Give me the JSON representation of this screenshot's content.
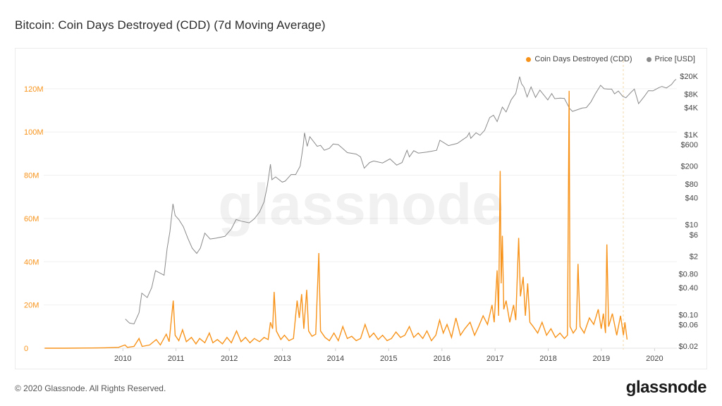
{
  "title": "Bitcoin: Coin Days Destroyed (CDD) (7d Moving Average)",
  "footer": {
    "copyright": "© 2020 Glassnode. All Rights Reserved.",
    "brand": "glassnode"
  },
  "watermark": "glassnode",
  "legend": [
    {
      "label": "Coin Days Destroyed (CDD)",
      "color": "#f7931a"
    },
    {
      "label": "Price [USD]",
      "color": "#8a8a8a"
    }
  ],
  "chart_data": {
    "type": "line",
    "x_ticks": [
      "2010",
      "2011",
      "2012",
      "2013",
      "2014",
      "2015",
      "2016",
      "2017",
      "2018",
      "2019",
      "2020"
    ],
    "left_axis": {
      "ticks": [
        "0",
        "20M",
        "40M",
        "60M",
        "80M",
        "100M",
        "120M"
      ],
      "ylim": [
        0,
        133000000
      ]
    },
    "right_axis": {
      "scale": "log",
      "ticks": [
        "$20K",
        "$8K",
        "$4K",
        "$1K",
        "$600",
        "$200",
        "$80",
        "$40",
        "$10",
        "$6",
        "$2",
        "$0.80",
        "$0.40",
        "$0.10",
        "$0.06",
        "$0.02"
      ]
    },
    "grid": true,
    "legend_position": "top-right",
    "series": [
      {
        "name": "Coin Days Destroyed (CDD)",
        "color": "#f7931a",
        "points": [
          [
            "2009-01-10",
            0
          ],
          [
            "2009-06-01",
            0
          ],
          [
            "2009-12-01",
            100000
          ],
          [
            "2010-03-01",
            200000
          ],
          [
            "2010-06-01",
            400000
          ],
          [
            "2010-07-15",
            1500000
          ],
          [
            "2010-08-01",
            400000
          ],
          [
            "2010-09-15",
            800000
          ],
          [
            "2010-10-20",
            4500000
          ],
          [
            "2010-11-10",
            800000
          ],
          [
            "2011-01-01",
            1500000
          ],
          [
            "2011-02-15",
            4000000
          ],
          [
            "2011-03-15",
            1500000
          ],
          [
            "2011-04-25",
            6500000
          ],
          [
            "2011-05-15",
            3000000
          ],
          [
            "2011-06-12",
            22000000
          ],
          [
            "2011-06-25",
            6000000
          ],
          [
            "2011-07-20",
            3500000
          ],
          [
            "2011-08-15",
            8500000
          ],
          [
            "2011-09-10",
            3000000
          ],
          [
            "2011-10-15",
            5000000
          ],
          [
            "2011-11-15",
            2000000
          ],
          [
            "2011-12-10",
            4500000
          ],
          [
            "2012-01-15",
            2500000
          ],
          [
            "2012-02-15",
            7000000
          ],
          [
            "2012-03-10",
            2500000
          ],
          [
            "2012-04-10",
            4000000
          ],
          [
            "2012-05-15",
            2000000
          ],
          [
            "2012-06-15",
            5000000
          ],
          [
            "2012-07-15",
            2500000
          ],
          [
            "2012-08-20",
            8000000
          ],
          [
            "2012-09-20",
            3000000
          ],
          [
            "2012-10-20",
            5000000
          ],
          [
            "2012-11-20",
            2500000
          ],
          [
            "2012-12-20",
            4500000
          ],
          [
            "2013-01-25",
            3000000
          ],
          [
            "2013-02-25",
            5000000
          ],
          [
            "2013-03-25",
            4000000
          ],
          [
            "2013-04-10",
            12000000
          ],
          [
            "2013-04-25",
            9000000
          ],
          [
            "2013-05-05",
            26000000
          ],
          [
            "2013-05-20",
            8000000
          ],
          [
            "2013-06-20",
            4000000
          ],
          [
            "2013-07-15",
            6000000
          ],
          [
            "2013-08-15",
            3500000
          ],
          [
            "2013-09-15",
            4500000
          ],
          [
            "2013-10-10",
            22000000
          ],
          [
            "2013-10-25",
            14000000
          ],
          [
            "2013-11-10",
            25000000
          ],
          [
            "2013-11-25",
            9000000
          ],
          [
            "2013-12-15",
            27000000
          ],
          [
            "2013-12-28",
            8000000
          ],
          [
            "2014-01-20",
            5500000
          ],
          [
            "2014-02-15",
            6500000
          ],
          [
            "2014-03-08",
            44000000
          ],
          [
            "2014-03-20",
            8000000
          ],
          [
            "2014-04-20",
            5000000
          ],
          [
            "2014-05-20",
            3500000
          ],
          [
            "2014-06-20",
            7000000
          ],
          [
            "2014-07-20",
            3500000
          ],
          [
            "2014-08-20",
            10000000
          ],
          [
            "2014-09-20",
            4500000
          ],
          [
            "2014-10-20",
            5500000
          ],
          [
            "2014-11-20",
            3500000
          ],
          [
            "2014-12-20",
            4500000
          ],
          [
            "2015-01-20",
            11000000
          ],
          [
            "2015-02-20",
            5000000
          ],
          [
            "2015-03-20",
            7000000
          ],
          [
            "2015-04-20",
            4000000
          ],
          [
            "2015-05-20",
            6000000
          ],
          [
            "2015-06-20",
            3500000
          ],
          [
            "2015-07-20",
            4500000
          ],
          [
            "2015-08-20",
            7500000
          ],
          [
            "2015-09-20",
            5000000
          ],
          [
            "2015-10-20",
            6000000
          ],
          [
            "2015-11-20",
            10000000
          ],
          [
            "2015-12-20",
            5000000
          ],
          [
            "2016-01-20",
            7000000
          ],
          [
            "2016-02-20",
            4500000
          ],
          [
            "2016-03-20",
            8000000
          ],
          [
            "2016-04-20",
            3500000
          ],
          [
            "2016-05-20",
            6000000
          ],
          [
            "2016-06-15",
            13000000
          ],
          [
            "2016-07-10",
            7000000
          ],
          [
            "2016-08-05",
            11000000
          ],
          [
            "2016-09-05",
            5000000
          ],
          [
            "2016-10-05",
            14000000
          ],
          [
            "2016-11-05",
            6000000
          ],
          [
            "2016-12-05",
            9000000
          ],
          [
            "2017-01-10",
            12000000
          ],
          [
            "2017-02-10",
            6000000
          ],
          [
            "2017-03-10",
            10000000
          ],
          [
            "2017-04-10",
            15000000
          ],
          [
            "2017-05-10",
            11000000
          ],
          [
            "2017-06-10",
            20000000
          ],
          [
            "2017-06-25",
            12000000
          ],
          [
            "2017-07-15",
            36000000
          ],
          [
            "2017-07-25",
            15000000
          ],
          [
            "2017-08-05",
            82000000
          ],
          [
            "2017-08-12",
            30000000
          ],
          [
            "2017-08-20",
            52000000
          ],
          [
            "2017-08-30",
            18000000
          ],
          [
            "2017-09-15",
            22000000
          ],
          [
            "2017-10-10",
            12000000
          ],
          [
            "2017-11-05",
            20000000
          ],
          [
            "2017-11-20",
            13000000
          ],
          [
            "2017-12-10",
            51000000
          ],
          [
            "2017-12-22",
            24000000
          ],
          [
            "2018-01-10",
            33000000
          ],
          [
            "2018-01-25",
            15000000
          ],
          [
            "2018-02-10",
            30000000
          ],
          [
            "2018-02-25",
            12000000
          ],
          [
            "2018-03-20",
            10000000
          ],
          [
            "2018-04-20",
            7000000
          ],
          [
            "2018-05-20",
            12000000
          ],
          [
            "2018-06-20",
            6000000
          ],
          [
            "2018-07-20",
            9000000
          ],
          [
            "2018-08-20",
            5000000
          ],
          [
            "2018-09-20",
            7000000
          ],
          [
            "2018-10-20",
            4500000
          ],
          [
            "2018-11-10",
            6000000
          ],
          [
            "2018-11-22",
            119000000
          ],
          [
            "2018-11-28",
            10000000
          ],
          [
            "2018-12-20",
            7000000
          ],
          [
            "2019-01-10",
            9000000
          ],
          [
            "2019-01-22",
            39000000
          ],
          [
            "2019-02-05",
            10000000
          ],
          [
            "2019-03-05",
            7000000
          ],
          [
            "2019-04-10",
            14000000
          ],
          [
            "2019-05-10",
            11000000
          ],
          [
            "2019-06-10",
            18000000
          ],
          [
            "2019-06-30",
            9000000
          ],
          [
            "2019-07-15",
            16000000
          ],
          [
            "2019-07-30",
            7000000
          ],
          [
            "2019-08-08",
            48000000
          ],
          [
            "2019-08-20",
            10000000
          ],
          [
            "2019-09-15",
            16000000
          ],
          [
            "2019-10-15",
            6000000
          ],
          [
            "2019-11-10",
            15000000
          ],
          [
            "2019-11-30",
            6000000
          ],
          [
            "2019-12-10",
            12000000
          ],
          [
            "2019-12-25",
            4000000
          ]
        ]
      },
      {
        "name": "Price [USD]",
        "color": "#8a8a8a",
        "points": [
          [
            "2010-07-18",
            0.08
          ],
          [
            "2010-08-15",
            0.065
          ],
          [
            "2010-09-15",
            0.062
          ],
          [
            "2010-10-20",
            0.11
          ],
          [
            "2010-11-08",
            0.3
          ],
          [
            "2010-12-15",
            0.24
          ],
          [
            "2011-01-15",
            0.4
          ],
          [
            "2011-02-10",
            0.95
          ],
          [
            "2011-03-10",
            0.85
          ],
          [
            "2011-04-10",
            0.75
          ],
          [
            "2011-05-01",
            3
          ],
          [
            "2011-05-20",
            7
          ],
          [
            "2011-06-10",
            29
          ],
          [
            "2011-06-25",
            16
          ],
          [
            "2011-07-20",
            13
          ],
          [
            "2011-08-20",
            9
          ],
          [
            "2011-09-20",
            5
          ],
          [
            "2011-10-20",
            3
          ],
          [
            "2011-11-20",
            2.3
          ],
          [
            "2011-12-15",
            3
          ],
          [
            "2012-01-15",
            6.5
          ],
          [
            "2012-02-20",
            4.8
          ],
          [
            "2012-04-01",
            5
          ],
          [
            "2012-06-01",
            5.5
          ],
          [
            "2012-07-15",
            8
          ],
          [
            "2012-08-17",
            13
          ],
          [
            "2012-09-20",
            12
          ],
          [
            "2012-11-15",
            11
          ],
          [
            "2012-12-20",
            13.5
          ],
          [
            "2013-01-25",
            19
          ],
          [
            "2013-02-25",
            32
          ],
          [
            "2013-03-20",
            75
          ],
          [
            "2013-04-10",
            220
          ],
          [
            "2013-04-20",
            100
          ],
          [
            "2013-05-15",
            115
          ],
          [
            "2013-06-30",
            88
          ],
          [
            "2013-07-20",
            93
          ],
          [
            "2013-08-30",
            130
          ],
          [
            "2013-09-30",
            130
          ],
          [
            "2013-10-31",
            200
          ],
          [
            "2013-11-20",
            550
          ],
          [
            "2013-11-30",
            1100
          ],
          [
            "2013-12-18",
            550
          ],
          [
            "2014-01-05",
            900
          ],
          [
            "2014-02-25",
            550
          ],
          [
            "2014-03-20",
            580
          ],
          [
            "2014-04-15",
            450
          ],
          [
            "2014-05-20",
            500
          ],
          [
            "2014-06-15",
            620
          ],
          [
            "2014-07-20",
            600
          ],
          [
            "2014-08-20",
            490
          ],
          [
            "2014-09-20",
            400
          ],
          [
            "2014-10-20",
            385
          ],
          [
            "2014-11-20",
            370
          ],
          [
            "2014-12-20",
            320
          ],
          [
            "2015-01-14",
            180
          ],
          [
            "2015-02-20",
            240
          ],
          [
            "2015-03-20",
            260
          ],
          [
            "2015-05-20",
            235
          ],
          [
            "2015-07-10",
            290
          ],
          [
            "2015-08-25",
            210
          ],
          [
            "2015-10-01",
            240
          ],
          [
            "2015-11-04",
            450
          ],
          [
            "2015-11-20",
            320
          ],
          [
            "2015-12-20",
            440
          ],
          [
            "2016-01-20",
            390
          ],
          [
            "2016-03-20",
            410
          ],
          [
            "2016-05-25",
            450
          ],
          [
            "2016-06-17",
            750
          ],
          [
            "2016-07-15",
            660
          ],
          [
            "2016-08-15",
            570
          ],
          [
            "2016-10-15",
            640
          ],
          [
            "2016-12-20",
            900
          ],
          [
            "2017-01-05",
            1100
          ],
          [
            "2017-01-15",
            830
          ],
          [
            "2017-02-20",
            1100
          ],
          [
            "2017-03-20",
            970
          ],
          [
            "2017-04-20",
            1250
          ],
          [
            "2017-05-25",
            2400
          ],
          [
            "2017-06-20",
            2700
          ],
          [
            "2017-07-15",
            1950
          ],
          [
            "2017-08-20",
            4100
          ],
          [
            "2017-09-15",
            3200
          ],
          [
            "2017-10-20",
            6000
          ],
          [
            "2017-11-20",
            8200
          ],
          [
            "2017-12-17",
            19500
          ],
          [
            "2017-12-30",
            13500
          ],
          [
            "2018-01-15",
            11500
          ],
          [
            "2018-02-06",
            6900
          ],
          [
            "2018-03-05",
            11500
          ],
          [
            "2018-04-05",
            6700
          ],
          [
            "2018-05-05",
            9800
          ],
          [
            "2018-06-28",
            5900
          ],
          [
            "2018-07-25",
            8200
          ],
          [
            "2018-08-15",
            6300
          ],
          [
            "2018-09-20",
            6500
          ],
          [
            "2018-10-20",
            6400
          ],
          [
            "2018-11-25",
            3800
          ],
          [
            "2018-12-15",
            3300
          ],
          [
            "2019-01-20",
            3600
          ],
          [
            "2019-02-20",
            3900
          ],
          [
            "2019-03-20",
            4000
          ],
          [
            "2019-04-20",
            5300
          ],
          [
            "2019-05-20",
            8000
          ],
          [
            "2019-06-26",
            12500
          ],
          [
            "2019-07-20",
            10500
          ],
          [
            "2019-08-15",
            10300
          ],
          [
            "2019-09-10",
            10300
          ],
          [
            "2019-09-30",
            8100
          ],
          [
            "2019-10-26",
            9300
          ],
          [
            "2019-11-25",
            7100
          ],
          [
            "2019-12-17",
            6600
          ],
          [
            "2020-01-20",
            8700
          ],
          [
            "2020-02-13",
            10300
          ],
          [
            "2020-03-13",
            4900
          ],
          [
            "2020-04-20",
            7000
          ],
          [
            "2020-05-20",
            9500
          ],
          [
            "2020-06-20",
            9400
          ],
          [
            "2020-07-28",
            11000
          ],
          [
            "2020-08-20",
            11800
          ],
          [
            "2020-09-20",
            10900
          ],
          [
            "2020-10-25",
            13000
          ],
          [
            "2020-11-15",
            16000
          ],
          [
            "2020-11-26",
            17000
          ]
        ]
      }
    ]
  }
}
